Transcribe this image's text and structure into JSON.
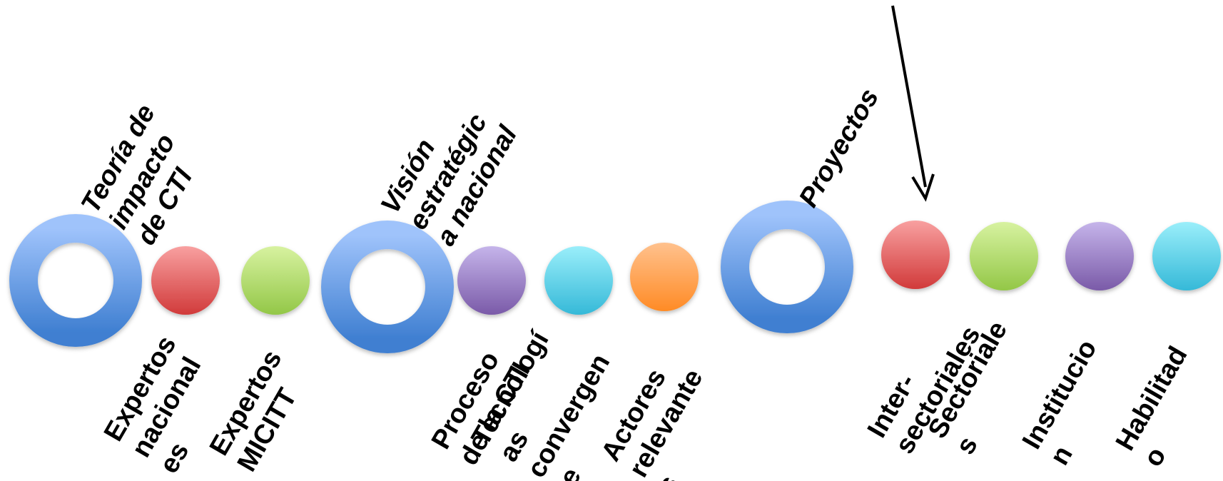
{
  "diagram": {
    "groups": [
      {
        "title": "Teoría de\nimpacto\nde CTI",
        "items": [
          {
            "label": "Expertos\nnacional\nes",
            "color": "red"
          },
          {
            "label": "Expertos\nMICITT",
            "color": "green"
          }
        ]
      },
      {
        "title": "Visión\nestratégic\na nacional",
        "items": [
          {
            "label": "Proceso\nde la CTI",
            "color": "purple"
          },
          {
            "label": "Tecnologí\nas\nconvergen\nte",
            "color": "cyan"
          },
          {
            "label": "Actores\nrelevante\ns",
            "color": "orange"
          }
        ]
      },
      {
        "title": "Proyectos",
        "items": [
          {
            "label": "Inter-\nsectoriales",
            "color": "red"
          },
          {
            "label": "Sectoriale\ns",
            "color": "green"
          },
          {
            "label": "Institucio\nn",
            "color": "purple"
          },
          {
            "label": "Habilitad\no",
            "color": "cyan"
          }
        ]
      }
    ],
    "colors": {
      "ring_top": "#9fc3fb",
      "ring_bottom": "#3f7fd1",
      "red_top": "#f8a0a0",
      "red_bottom": "#d13a3a",
      "green_top": "#d7f2a0",
      "green_bottom": "#93c747",
      "purple_top": "#c5b4ea",
      "purple_bottom": "#7a5aa8",
      "cyan_top": "#9aeefa",
      "cyan_bottom": "#35b9d8",
      "orange_top": "#ffc18d",
      "orange_bottom": "#ff8b25"
    }
  }
}
